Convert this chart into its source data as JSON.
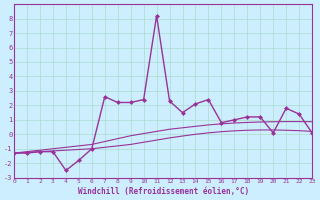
{
  "xlabel": "Windchill (Refroidissement éolien,°C)",
  "bg_color": "#cceeff",
  "grid_color": "#aaddcc",
  "line_color": "#993399",
  "y_windchill": [
    -1.3,
    -1.3,
    -1.2,
    -1.2,
    -2.5,
    -1.8,
    -1.0,
    2.6,
    2.2,
    2.2,
    2.4,
    8.2,
    2.3,
    1.5,
    2.1,
    2.4,
    0.8,
    1.0,
    1.2,
    1.2,
    0.1,
    1.8,
    1.4,
    0.1
  ],
  "y_temp_line1": [
    -1.3,
    -1.2,
    -1.1,
    -1.0,
    -0.9,
    -0.8,
    -0.7,
    -0.5,
    -0.3,
    -0.1,
    0.05,
    0.2,
    0.35,
    0.45,
    0.55,
    0.65,
    0.72,
    0.78,
    0.82,
    0.85,
    0.87,
    0.88,
    0.88,
    0.87
  ],
  "y_temp_line2": [
    -1.3,
    -1.25,
    -1.2,
    -1.15,
    -1.1,
    -1.05,
    -1.0,
    -0.9,
    -0.8,
    -0.7,
    -0.55,
    -0.4,
    -0.25,
    -0.12,
    0.0,
    0.1,
    0.18,
    0.24,
    0.28,
    0.3,
    0.3,
    0.28,
    0.25,
    0.2
  ],
  "ylim": [
    -3,
    9
  ],
  "xlim": [
    0,
    23
  ]
}
